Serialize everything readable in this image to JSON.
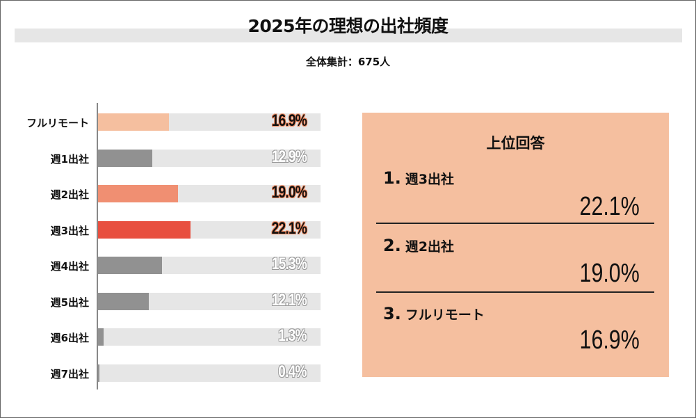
{
  "chart_data": {
    "type": "bar",
    "orientation": "horizontal",
    "title": "2025年の理想の出社頻度",
    "subtitle": "全体集計：675人",
    "categories": [
      "フルリモート",
      "週1出社",
      "週2出社",
      "週3出社",
      "週4出社",
      "週5出社",
      "週6出社",
      "週7出社"
    ],
    "values": [
      16.9,
      12.9,
      19.0,
      22.1,
      15.3,
      12.1,
      1.3,
      0.4
    ],
    "labels": [
      "16.9%",
      "12.9%",
      "19.0%",
      "22.1%",
      "15.3%",
      "12.1%",
      "1.3%",
      "0.4%"
    ],
    "colors": [
      "#f5bf9f",
      "#919191",
      "#f08f72",
      "#e84f3f",
      "#919191",
      "#919191",
      "#919191",
      "#919191"
    ],
    "highlight": [
      true,
      false,
      true,
      true,
      false,
      false,
      false,
      false
    ],
    "xlim": [
      0,
      53
    ],
    "track_color": "#e6e6e6",
    "grid": false
  },
  "panel": {
    "title": "上位回答",
    "items": [
      {
        "rank": "1.",
        "label": "週3出社",
        "value": "22.1%"
      },
      {
        "rank": "2.",
        "label": "週2出社",
        "value": "19.0%"
      },
      {
        "rank": "3.",
        "label": "フルリモート",
        "value": "16.9%"
      }
    ],
    "background": "#f5bf9f"
  }
}
